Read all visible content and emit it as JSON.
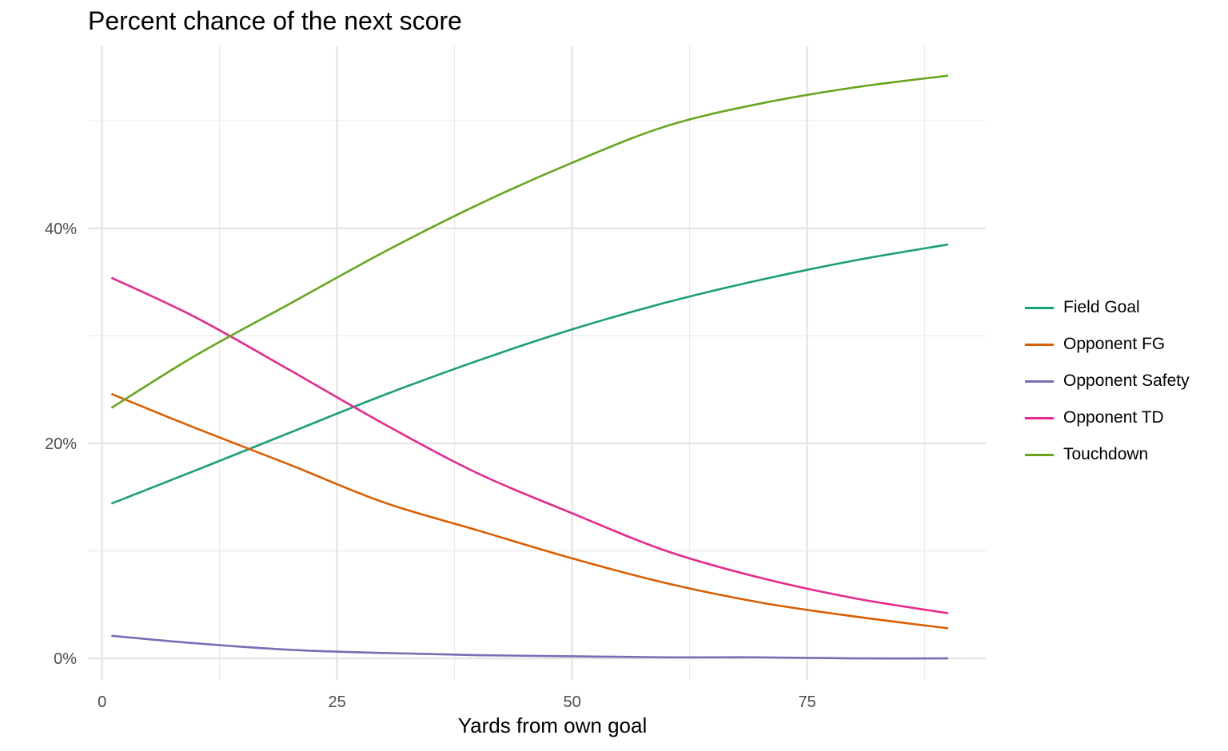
{
  "chart_data": {
    "type": "line",
    "title": "Percent chance of the next score",
    "xlabel": "Yards from own goal",
    "ylabel": "",
    "xlim": [
      -1.5,
      94
    ],
    "ylim": [
      -0.02,
      0.57
    ],
    "x_ticks": [
      0,
      25,
      50,
      75
    ],
    "x_tick_labels": [
      "0",
      "25",
      "50",
      "75"
    ],
    "x_minor_ticks": [
      12.5,
      37.5,
      62.5,
      87.5
    ],
    "y_ticks": [
      0,
      0.2,
      0.4
    ],
    "y_tick_labels": [
      "0%",
      "20%",
      "40%"
    ],
    "y_minor_ticks": [
      0.1,
      0.3,
      0.5
    ],
    "grid": true,
    "legend_position": "right",
    "x": [
      1,
      10,
      20,
      30,
      40,
      50,
      60,
      70,
      80,
      90
    ],
    "series": [
      {
        "name": "Field Goal",
        "color": "#1b9e77",
        "values": [
          0.144,
          0.175,
          0.21,
          0.245,
          0.277,
          0.306,
          0.331,
          0.352,
          0.37,
          0.385
        ]
      },
      {
        "name": "Opponent FG",
        "color": "#d95f02",
        "values": [
          0.246,
          0.214,
          0.18,
          0.145,
          0.119,
          0.093,
          0.07,
          0.052,
          0.039,
          0.028
        ]
      },
      {
        "name": "Opponent Safety",
        "color": "#7570b3",
        "values": [
          0.021,
          0.014,
          0.008,
          0.005,
          0.003,
          0.002,
          0.001,
          0.001,
          0.0,
          0.0
        ]
      },
      {
        "name": "Opponent TD",
        "color": "#e7298a",
        "values": [
          0.354,
          0.317,
          0.268,
          0.218,
          0.172,
          0.135,
          0.1,
          0.075,
          0.056,
          0.042
        ]
      },
      {
        "name": "Touchdown",
        "color": "#66a61e",
        "values": [
          0.233,
          0.282,
          0.33,
          0.378,
          0.422,
          0.461,
          0.495,
          0.516,
          0.531,
          0.542
        ]
      }
    ]
  }
}
